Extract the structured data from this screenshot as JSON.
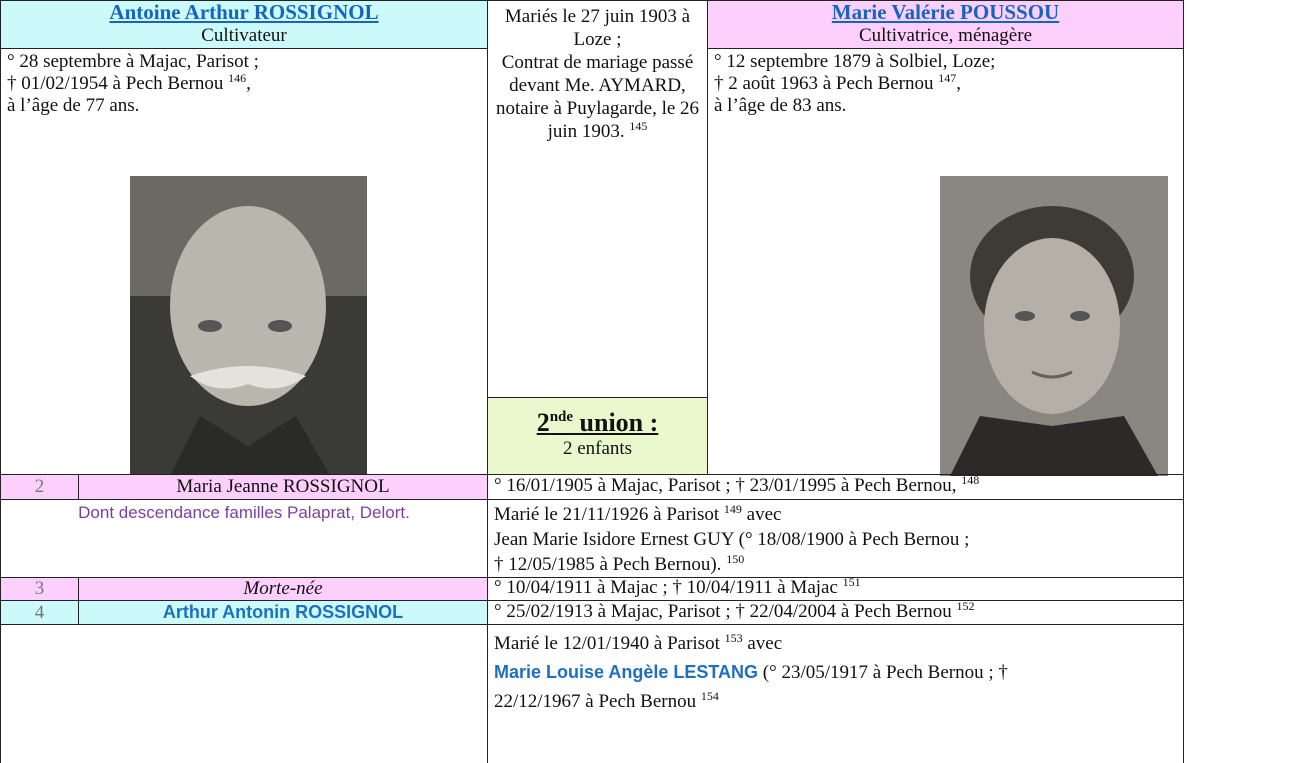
{
  "husband": {
    "name": "Antoine Arthur ROSSIGNOL",
    "occupation": "Cultivateur",
    "birth": "° 28 septembre à Majac, Parisot ;",
    "death": "† 01/02/1954 à Pech Bernou",
    "death_note": "146",
    "death_end": ",",
    "age": "à l’âge de 77 ans."
  },
  "marriage": {
    "date": "Mariés le 27 juin 1903 à Loze ;",
    "contract": "Contrat de mariage passé devant Me. AYMARD, notaire à Puylagarde, le 26 juin 1903.",
    "note": "145"
  },
  "union": {
    "number": "2",
    "suffix": "nde",
    "label": "union :",
    "children": "2 enfants"
  },
  "wife": {
    "name": "Marie Valérie POUSSOU",
    "occupation": "Cultivatrice, ménagère",
    "birth": "° 12 septembre 1879 à Solbiel, Loze;",
    "death": "† 2 août 1963 à Pech Bernou",
    "death_note": "147",
    "death_end": ",",
    "age": "à l’âge de 83 ans."
  },
  "children": [
    {
      "number": "2",
      "name": "Maria Jeanne ROSSIGNOL",
      "dates": "° 16/01/1905 à Majac, Parisot ; † 23/01/1995 à Pech Bernou,",
      "dates_note": "148",
      "descendance": "Dont descendance familles Palaprat, Delort.",
      "marriage": "Marié le 21/11/1926 à Parisot",
      "marriage_note": "149",
      "marriage_with": "avec",
      "spouse": "Jean Marie Isidore Ernest GUY (° 18/08/1900 à Pech Bernou ;",
      "spouse_death": "† 12/05/1985 à Pech Bernou).",
      "spouse_note": "150"
    },
    {
      "number": "3",
      "name": "Morte-née",
      "dates": "° 10/04/1911 à Majac ; † 10/04/1911 à Majac",
      "dates_note": "151"
    },
    {
      "number": "4",
      "name": "Arthur Antonin ROSSIGNOL",
      "dates": "° 25/02/1913 à Majac, Parisot ; † 22/04/2004 à Pech Bernou",
      "dates_note": "152",
      "marriage": "Marié le 12/01/1940 à Parisot",
      "marriage_note": "153",
      "marriage_with": "avec",
      "spouse": "Marie Louise Angèle LESTANG",
      "spouse_birth": "(° 23/05/1917 à Pech Bernou ; †",
      "spouse_death": "22/12/1967 à Pech Bernou",
      "spouse_note": "154"
    }
  ]
}
